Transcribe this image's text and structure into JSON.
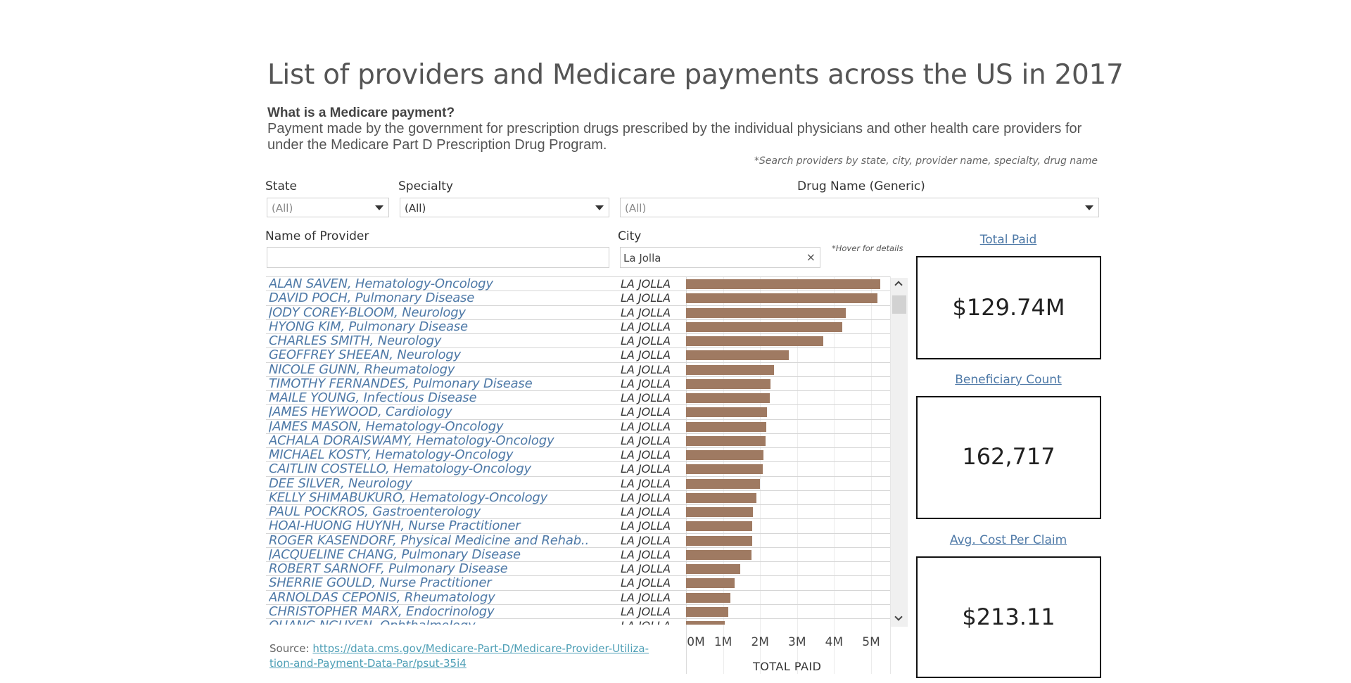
{
  "title": "List of providers and Medicare payments across the US in 2017",
  "subhead": "What is a Medicare payment?",
  "description": "Payment made by the government for prescription drugs prescribed by the individual physicians and other health care providers for under the Medicare Part D Prescription Drug Program.",
  "search_hint": "*Search providers by state, city, provider name, specialty, drug name",
  "filters": {
    "state": {
      "label": "State",
      "value": "(All)"
    },
    "specialty": {
      "label": "Specialty",
      "value": "(All)"
    },
    "drug": {
      "label": "Drug Name (Generic)",
      "value": "(All)"
    },
    "provider": {
      "label": "Name of Provider",
      "value": ""
    },
    "city": {
      "label": "City",
      "value": "La Jolla",
      "clear": "×"
    }
  },
  "hover_hint": "*Hover for details",
  "bar_color": "#9f7a62",
  "rows": [
    {
      "name": "ALAN SAVEN, Hematology-Oncology",
      "city": "LA JOLLA",
      "paid_m": 5.25
    },
    {
      "name": "DAVID POCH, Pulmonary Disease",
      "city": "LA JOLLA",
      "paid_m": 5.17
    },
    {
      "name": "JODY COREY-BLOOM, Neurology",
      "city": "LA JOLLA",
      "paid_m": 4.31
    },
    {
      "name": "HYONG KIM, Pulmonary Disease",
      "city": "LA JOLLA",
      "paid_m": 4.22
    },
    {
      "name": "CHARLES SMITH, Neurology",
      "city": "LA JOLLA",
      "paid_m": 3.7
    },
    {
      "name": "GEOFFREY SHEEAN, Neurology",
      "city": "LA JOLLA",
      "paid_m": 2.77
    },
    {
      "name": "NICOLE GUNN, Rheumatology",
      "city": "LA JOLLA",
      "paid_m": 2.37
    },
    {
      "name": "TIMOTHY FERNANDES, Pulmonary Disease",
      "city": "LA JOLLA",
      "paid_m": 2.29
    },
    {
      "name": "MAILE YOUNG, Infectious Disease",
      "city": "LA JOLLA",
      "paid_m": 2.26
    },
    {
      "name": "JAMES HEYWOOD, Cardiology",
      "city": "LA JOLLA",
      "paid_m": 2.19
    },
    {
      "name": "JAMES MASON, Hematology-Oncology",
      "city": "LA JOLLA",
      "paid_m": 2.16
    },
    {
      "name": "ACHALA DORAISWAMY, Hematology-Oncology",
      "city": "LA JOLLA",
      "paid_m": 2.14
    },
    {
      "name": "MICHAEL KOSTY, Hematology-Oncology",
      "city": "LA JOLLA",
      "paid_m": 2.1
    },
    {
      "name": "CAITLIN COSTELLO, Hematology-Oncology",
      "city": "LA JOLLA",
      "paid_m": 2.08
    },
    {
      "name": "DEE SILVER, Neurology",
      "city": "LA JOLLA",
      "paid_m": 2.0
    },
    {
      "name": "KELLY SHIMABUKURO, Hematology-Oncology",
      "city": "LA JOLLA",
      "paid_m": 1.9
    },
    {
      "name": "PAUL POCKROS, Gastroenterology",
      "city": "LA JOLLA",
      "paid_m": 1.81
    },
    {
      "name": "HOAI-HUONG HUYNH, Nurse Practitioner",
      "city": "LA JOLLA",
      "paid_m": 1.79
    },
    {
      "name": "ROGER KASENDORF, Physical Medicine and Rehab..",
      "city": "LA JOLLA",
      "paid_m": 1.78
    },
    {
      "name": "JACQUELINE CHANG, Pulmonary Disease",
      "city": "LA JOLLA",
      "paid_m": 1.76
    },
    {
      "name": "ROBERT SARNOFF, Pulmonary Disease",
      "city": "LA JOLLA",
      "paid_m": 1.46
    },
    {
      "name": "SHERRIE GOULD, Nurse Practitioner",
      "city": "LA JOLLA",
      "paid_m": 1.32
    },
    {
      "name": "ARNOLDAS CEPONIS, Rheumatology",
      "city": "LA JOLLA",
      "paid_m": 1.2
    },
    {
      "name": "CHRISTOPHER MARX, Endocrinology",
      "city": "LA JOLLA",
      "paid_m": 1.15
    },
    {
      "name": "QUANG NGUYEN, Ophthalmology",
      "city": "LA JOLLA",
      "paid_m": 1.04
    }
  ],
  "axis": {
    "title": "TOTAL PAID",
    "ticks": [
      "0M",
      "1M",
      "2M",
      "3M",
      "4M",
      "5M"
    ],
    "tick_values": [
      0,
      1,
      2,
      3,
      4,
      5
    ],
    "max": 5.4
  },
  "source": {
    "label": "Source:",
    "url_line1": "https://data.cms.gov/Medicare-Part-D/Medicare-Provider-Utiliza-",
    "url_line2": "tion-and-Payment-Data-Par/psut-35i4"
  },
  "kpis": {
    "total_paid": {
      "title": "Total Paid",
      "value": "$129.74M"
    },
    "beneficiary_count": {
      "title": "Beneficiary Count",
      "value": "162,717"
    },
    "avg_cost": {
      "title": "Avg. Cost Per Claim",
      "value": "$213.11"
    }
  }
}
